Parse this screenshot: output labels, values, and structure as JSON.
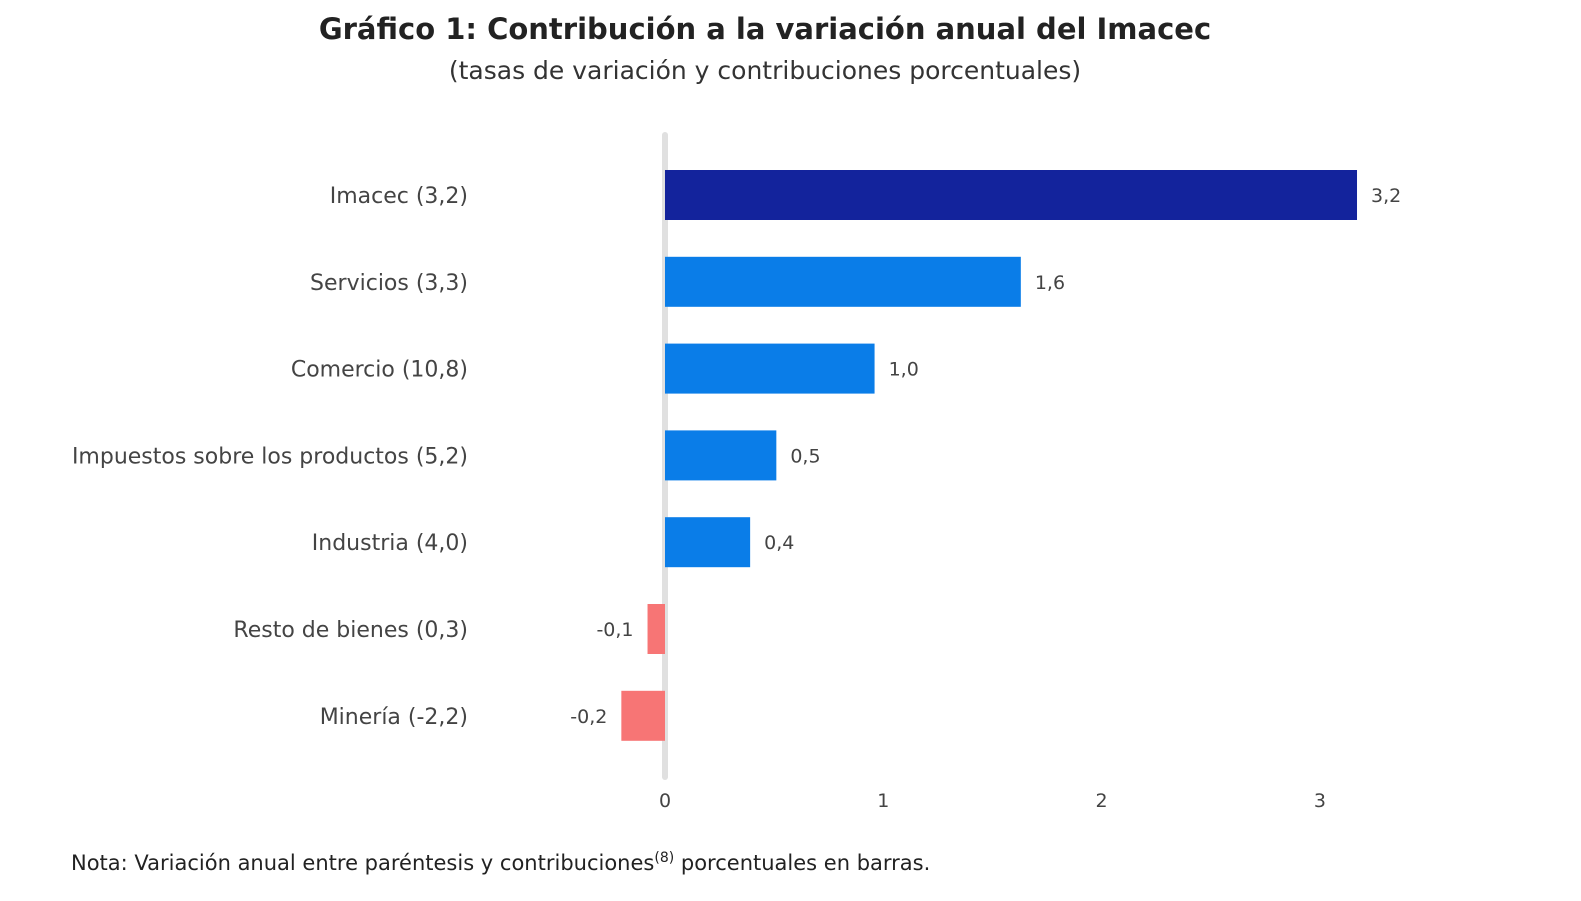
{
  "chart_data": {
    "type": "bar",
    "orientation": "horizontal",
    "title": "Gráfico 1: Contribución a la variación anual del Imacec",
    "subtitle": "(tasas de variación y contribuciones porcentuales)",
    "categories": [
      "Imacec (3,2)",
      "Servicios (3,3)",
      "Comercio (10,8)",
      "Impuestos sobre los productos (5,2)",
      "Industria (4,0)",
      "Resto de bienes (0,3)",
      "Minería (-2,2)"
    ],
    "values": [
      3.17,
      1.63,
      0.96,
      0.51,
      0.39,
      -0.08,
      -0.2
    ],
    "data_labels": [
      "3,2",
      "1,6",
      "1,0",
      "0,5",
      "0,4",
      "-0,1",
      "-0,2"
    ],
    "xlim": [
      -0.3,
      3.3
    ],
    "x_ticks": [
      0,
      1,
      2,
      3
    ],
    "x_tick_labels": [
      "0",
      "1",
      "2",
      "3"
    ],
    "grid": false,
    "colors": {
      "total": "#13239c",
      "positive": "#0a7de8",
      "negative": "#f77575",
      "zero_line": "#e0e0e0"
    }
  },
  "note": {
    "text_before": "Nota: Variación anual entre paréntesis y contribuciones",
    "superscript": "(8)",
    "text_after": " porcentuales en barras."
  }
}
